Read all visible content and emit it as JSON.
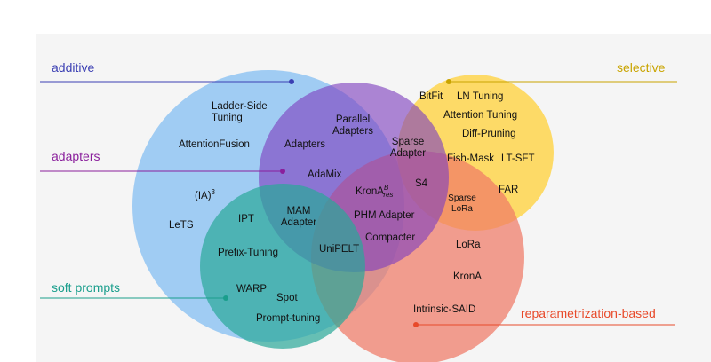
{
  "categories": {
    "additive": {
      "label": "additive",
      "color": "#3b3fb3"
    },
    "selective": {
      "label": "selective",
      "color": "#c9a400"
    },
    "adapters": {
      "label": "adapters",
      "color": "#8a1f9c"
    },
    "soft_prompts": {
      "label": "soft prompts",
      "color": "#1a9e8c"
    },
    "reparametrization": {
      "label": "reparametrization-based",
      "color": "#e84a2a"
    }
  },
  "colors": {
    "additive_fill": "#5aaaf0",
    "selective_fill": "#ffd23f",
    "adapters_fill": "#7e3fbf",
    "soft_prompts_fill": "#2aa898",
    "reparam_fill": "#f07a66"
  },
  "methods": {
    "ladder_side_1": "Ladder-Side",
    "ladder_side_2": "Tuning",
    "attention_fusion": "AttentionFusion",
    "ia3_base": "(IA)",
    "ia3_sup": "3",
    "lets": "LeTS",
    "ipt": "IPT",
    "prefix_tuning": "Prefix-Tuning",
    "warp": "WARP",
    "spot": "Spot",
    "prompt_tuning": "Prompt-tuning",
    "parallel_adapters_1": "Parallel",
    "parallel_adapters_2": "Adapters",
    "adapters": "Adapters",
    "adamix": "AdaMix",
    "mam_adapter_1": "MAM",
    "mam_adapter_2": "Adapter",
    "unipelt": "UniPELT",
    "krona_res_base": "KronA",
    "krona_res_sup": "B",
    "krona_res_sub": "res",
    "phm_adapter": "PHM Adapter",
    "compacter": "Compacter",
    "sparse_adapter_1": "Sparse",
    "sparse_adapter_2": "Adapter",
    "s4": "S4",
    "sparse_lora_1": "Sparse",
    "sparse_lora_2": "LoRa",
    "bitfit": "BitFit",
    "ln_tuning": "LN Tuning",
    "attention_tuning": "Attention Tuning",
    "diff_pruning": "Diff-Pruning",
    "fish_mask": "Fish-Mask",
    "lt_sft": "LT-SFT",
    "far": "FAR",
    "lora": "LoRa",
    "krona": "KronA",
    "intrinsic_said": "Intrinsic-SAID"
  }
}
